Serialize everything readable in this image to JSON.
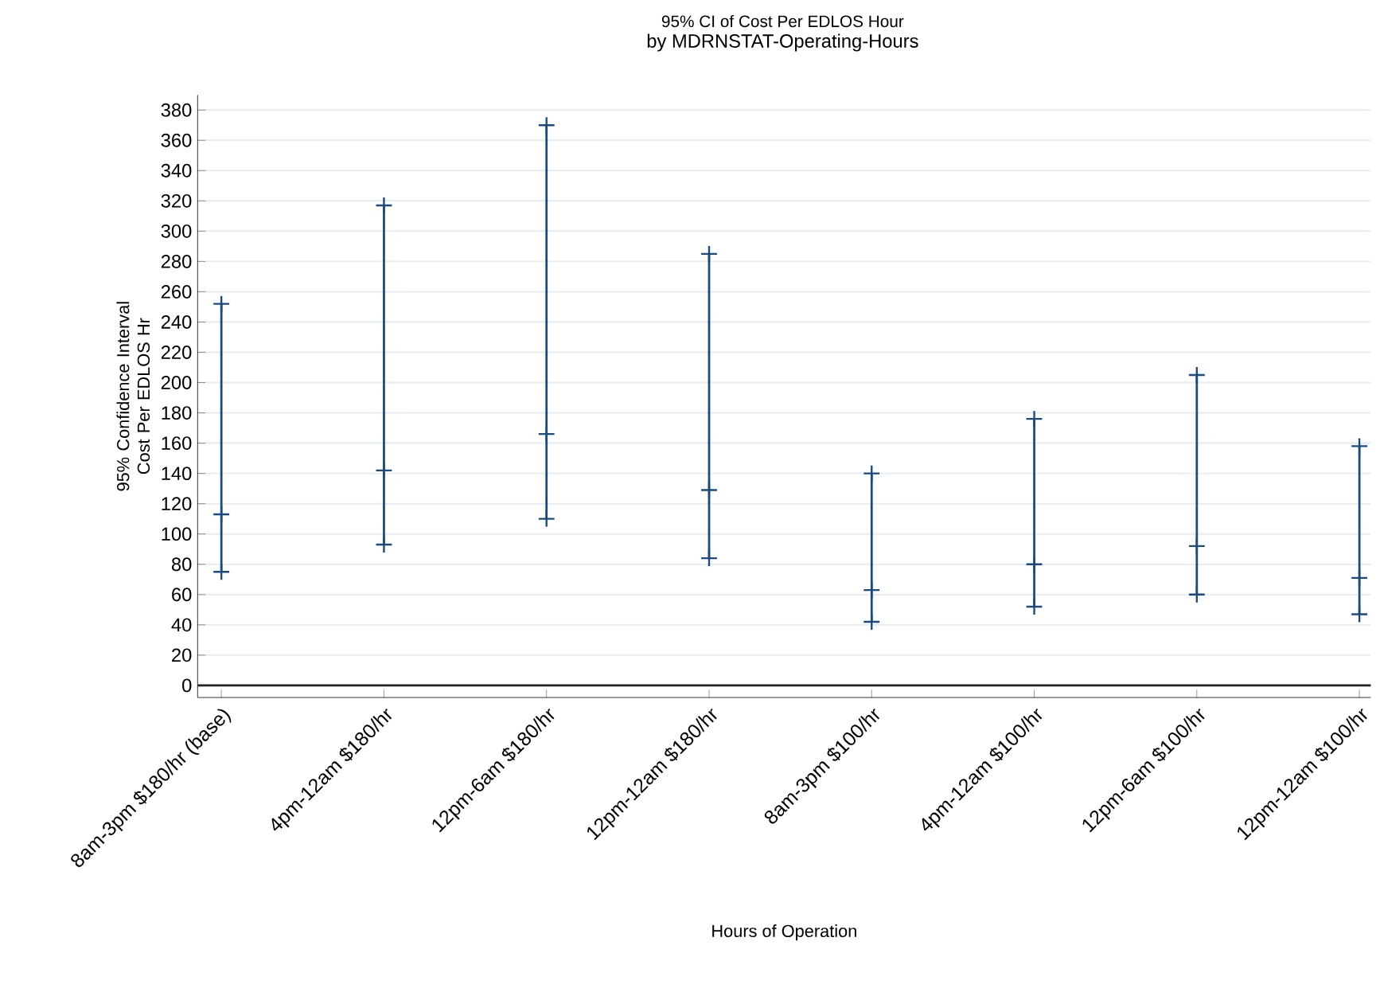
{
  "chart_data": {
    "type": "scatter",
    "title": "95% CI of Cost Per EDLOS Hour",
    "subtitle": "by MDRNSTAT-Operating-Hours",
    "xlabel": "Hours of Operation",
    "ylabel": "95% Confidence Interval Cost Per EDLOS Hr",
    "categories": [
      "8am-3pm $180/hr (base)",
      "4pm-12am $180/hr",
      "12pm-6am $180/hr",
      "12pm-12am $180/hr",
      "8am-3pm $100/hr",
      "4pm-12am $100/hr",
      "12pm-6am $100/hr",
      "12pm-12am $100/hr"
    ],
    "series": [
      {
        "color": "#1b4b7c",
        "values": [
          113,
          142,
          166,
          129,
          63,
          80,
          92,
          71
        ],
        "errors": [
          [
            75,
            252
          ],
          [
            93,
            317
          ],
          [
            110,
            370
          ],
          [
            84,
            285
          ],
          [
            42,
            140
          ],
          [
            52,
            176
          ],
          [
            60,
            205
          ],
          [
            47,
            158
          ]
        ]
      }
    ],
    "ylim": [
      -8,
      390
    ],
    "yticks": [
      0,
      20,
      40,
      60,
      80,
      100,
      120,
      140,
      160,
      180,
      200,
      220,
      240,
      260,
      280,
      300,
      320,
      340,
      360,
      380
    ],
    "grid": "y",
    "marker": "cross",
    "ref_lines": [
      {
        "axis": "y",
        "value": 0,
        "color": "#222222"
      }
    ]
  }
}
